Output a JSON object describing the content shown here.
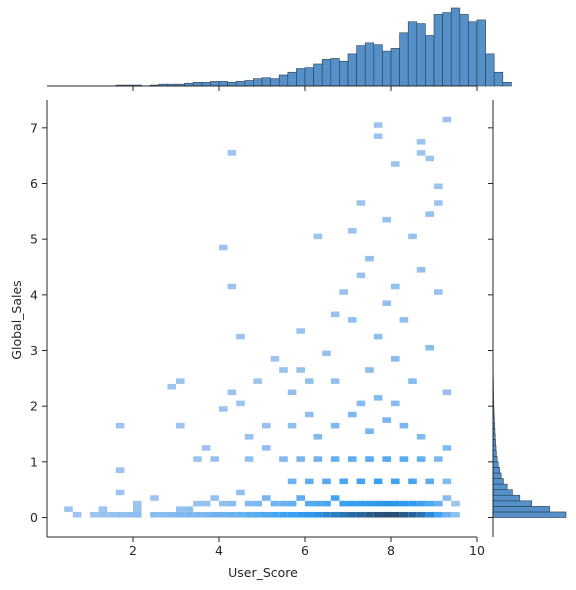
{
  "chart_data": {
    "type": "jointplot-histogram",
    "xlabel": "User_Score",
    "ylabel": "Global_Sales",
    "xlim": [
      0,
      10
    ],
    "ylim": [
      -0.35,
      7.5
    ],
    "xticks": [
      2,
      4,
      6,
      8,
      10
    ],
    "yticks": [
      0,
      1,
      2,
      3,
      4,
      5,
      6,
      7
    ],
    "colors": {
      "hist": "#4c8bc5",
      "hist_edge": "#2c3e50",
      "heat_light": "#a8c8ee",
      "heat_mid": "#2b9af0",
      "heat_dark": "#274d73"
    },
    "marginal_x": {
      "bin_start": 1.6,
      "bin_width": 0.2,
      "counts": [
        1,
        1,
        1,
        0,
        1,
        2,
        2,
        2,
        3,
        4,
        4,
        5,
        5,
        4,
        5,
        6,
        8,
        9,
        8,
        12,
        15,
        19,
        20,
        24,
        29,
        30,
        27,
        35,
        44,
        47,
        45,
        38,
        41,
        58,
        70,
        68,
        55,
        78,
        80,
        85,
        78,
        70,
        72,
        35,
        15,
        4
      ]
    },
    "marginal_y": {
      "bin_start": 0,
      "bin_width": 0.1,
      "counts": [
        980,
        760,
        520,
        360,
        260,
        190,
        140,
        110,
        90,
        70,
        55,
        45,
        40,
        35,
        30,
        26,
        22,
        18,
        15,
        12,
        10,
        8,
        7,
        6,
        5,
        4,
        3,
        3,
        2,
        2,
        1,
        1
      ]
    },
    "heatmap": {
      "x_bin_width": 0.2,
      "y_bin_width": 0.1,
      "cells": [
        [
          0.4,
          0.1,
          1
        ],
        [
          0.6,
          0.0,
          1
        ],
        [
          1.0,
          0.0,
          1
        ],
        [
          1.2,
          0.1,
          1
        ],
        [
          1.2,
          0.0,
          2
        ],
        [
          1.4,
          0.0,
          2
        ],
        [
          1.6,
          0.0,
          3
        ],
        [
          1.8,
          0.0,
          4
        ],
        [
          2.0,
          0.0,
          5
        ],
        [
          2.0,
          0.1,
          2
        ],
        [
          1.6,
          1.6,
          1
        ],
        [
          1.6,
          0.8,
          1
        ],
        [
          1.6,
          0.4,
          1
        ],
        [
          2.0,
          0.2,
          1
        ],
        [
          2.4,
          0.0,
          6
        ],
        [
          2.4,
          0.3,
          1
        ],
        [
          2.6,
          0.0,
          6
        ],
        [
          2.8,
          0.0,
          8
        ],
        [
          3.0,
          0.0,
          9
        ],
        [
          3.0,
          0.1,
          3
        ],
        [
          3.2,
          0.0,
          10
        ],
        [
          3.2,
          0.1,
          4
        ],
        [
          3.4,
          0.0,
          10
        ],
        [
          3.4,
          0.2,
          2
        ],
        [
          3.6,
          0.0,
          12
        ],
        [
          3.6,
          0.2,
          3
        ],
        [
          3.8,
          0.0,
          14
        ],
        [
          3.8,
          0.3,
          3
        ],
        [
          4.0,
          0.0,
          16
        ],
        [
          4.0,
          0.2,
          4
        ],
        [
          4.2,
          0.0,
          18
        ],
        [
          4.2,
          0.2,
          5
        ],
        [
          4.4,
          0.0,
          20
        ],
        [
          4.4,
          0.4,
          4
        ],
        [
          4.6,
          0.0,
          24
        ],
        [
          4.6,
          0.2,
          8
        ],
        [
          4.8,
          0.0,
          28
        ],
        [
          4.8,
          0.2,
          10
        ],
        [
          5.0,
          0.0,
          34
        ],
        [
          5.0,
          0.3,
          12
        ],
        [
          5.2,
          0.0,
          38
        ],
        [
          5.2,
          0.2,
          14
        ],
        [
          5.4,
          0.0,
          44
        ],
        [
          5.4,
          0.2,
          18
        ],
        [
          5.6,
          0.0,
          48
        ],
        [
          5.6,
          0.2,
          20
        ],
        [
          5.8,
          0.0,
          52
        ],
        [
          5.8,
          0.3,
          24
        ],
        [
          6.0,
          0.0,
          60
        ],
        [
          6.0,
          0.2,
          28
        ],
        [
          6.2,
          0.0,
          66
        ],
        [
          6.2,
          0.2,
          32
        ],
        [
          6.4,
          0.0,
          76
        ],
        [
          6.4,
          0.2,
          36
        ],
        [
          6.6,
          0.0,
          82
        ],
        [
          6.6,
          0.3,
          38
        ],
        [
          6.8,
          0.0,
          90
        ],
        [
          6.8,
          0.2,
          44
        ],
        [
          7.0,
          0.0,
          100
        ],
        [
          7.0,
          0.2,
          48
        ],
        [
          7.2,
          0.0,
          108
        ],
        [
          7.2,
          0.2,
          52
        ],
        [
          7.4,
          0.0,
          120
        ],
        [
          7.4,
          0.2,
          56
        ],
        [
          7.6,
          0.0,
          128
        ],
        [
          7.6,
          0.2,
          60
        ],
        [
          7.8,
          0.0,
          134
        ],
        [
          7.8,
          0.2,
          62
        ],
        [
          8.0,
          0.0,
          130
        ],
        [
          8.0,
          0.2,
          60
        ],
        [
          8.2,
          0.0,
          122
        ],
        [
          8.2,
          0.2,
          56
        ],
        [
          8.4,
          0.0,
          110
        ],
        [
          8.4,
          0.2,
          52
        ],
        [
          8.6,
          0.0,
          96
        ],
        [
          8.6,
          0.2,
          44
        ],
        [
          8.8,
          0.0,
          70
        ],
        [
          8.8,
          0.2,
          32
        ],
        [
          9.0,
          0.0,
          40
        ],
        [
          9.0,
          0.2,
          18
        ],
        [
          9.2,
          0.0,
          16
        ],
        [
          9.2,
          0.3,
          6
        ],
        [
          9.4,
          0.0,
          4
        ],
        [
          9.4,
          0.2,
          1
        ],
        [
          2.8,
          2.3,
          1
        ],
        [
          3.0,
          2.4,
          1
        ],
        [
          3.0,
          1.6,
          1
        ],
        [
          3.4,
          1.0,
          1
        ],
        [
          3.6,
          1.2,
          1
        ],
        [
          3.8,
          1.0,
          2
        ],
        [
          4.0,
          1.9,
          1
        ],
        [
          4.2,
          2.2,
          1
        ],
        [
          4.2,
          4.1,
          1
        ],
        [
          4.2,
          6.5,
          1
        ],
        [
          4.0,
          4.8,
          1
        ],
        [
          4.4,
          2.0,
          1
        ],
        [
          4.4,
          3.2,
          1
        ],
        [
          4.6,
          1.0,
          3
        ],
        [
          4.6,
          1.4,
          2
        ],
        [
          4.8,
          2.4,
          1
        ],
        [
          5.0,
          1.6,
          2
        ],
        [
          5.0,
          1.2,
          3
        ],
        [
          5.2,
          2.8,
          1
        ],
        [
          5.4,
          2.6,
          2
        ],
        [
          5.6,
          2.2,
          3
        ],
        [
          5.6,
          1.6,
          4
        ],
        [
          5.8,
          2.6,
          2
        ],
        [
          5.8,
          3.3,
          1
        ],
        [
          6.0,
          2.4,
          3
        ],
        [
          6.0,
          1.8,
          4
        ],
        [
          6.2,
          5.0,
          1
        ],
        [
          6.4,
          2.9,
          2
        ],
        [
          6.6,
          2.4,
          3
        ],
        [
          6.6,
          3.6,
          2
        ],
        [
          6.8,
          4.0,
          2
        ],
        [
          7.0,
          5.1,
          1
        ],
        [
          7.0,
          3.5,
          3
        ],
        [
          7.2,
          4.3,
          2
        ],
        [
          7.2,
          5.6,
          1
        ],
        [
          7.4,
          2.6,
          5
        ],
        [
          7.4,
          4.6,
          3
        ],
        [
          7.6,
          3.2,
          4
        ],
        [
          7.6,
          7.0,
          1
        ],
        [
          7.6,
          6.8,
          1
        ],
        [
          7.8,
          3.8,
          3
        ],
        [
          7.8,
          5.3,
          2
        ],
        [
          8.0,
          2.8,
          6
        ],
        [
          8.0,
          4.1,
          3
        ],
        [
          8.0,
          6.3,
          1
        ],
        [
          8.2,
          3.5,
          4
        ],
        [
          8.4,
          5.0,
          2
        ],
        [
          8.4,
          2.4,
          7
        ],
        [
          8.6,
          6.7,
          1
        ],
        [
          8.6,
          4.4,
          3
        ],
        [
          8.8,
          5.4,
          2
        ],
        [
          8.8,
          3.0,
          5
        ],
        [
          9.0,
          5.6,
          1
        ],
        [
          9.0,
          4.0,
          2
        ],
        [
          9.2,
          7.1,
          1
        ],
        [
          9.2,
          2.2,
          3
        ],
        [
          9.2,
          1.2,
          8
        ],
        [
          8.6,
          6.5,
          1
        ],
        [
          8.8,
          6.4,
          1
        ],
        [
          9.0,
          5.9,
          1
        ],
        [
          5.4,
          1.0,
          8
        ],
        [
          5.8,
          1.0,
          12
        ],
        [
          6.2,
          1.0,
          16
        ],
        [
          6.6,
          1.0,
          20
        ],
        [
          7.0,
          1.0,
          24
        ],
        [
          7.4,
          1.0,
          26
        ],
        [
          7.8,
          1.0,
          28
        ],
        [
          8.2,
          1.0,
          26
        ],
        [
          8.6,
          1.0,
          20
        ],
        [
          9.0,
          1.0,
          10
        ],
        [
          5.6,
          0.6,
          16
        ],
        [
          6.0,
          0.6,
          22
        ],
        [
          6.4,
          0.6,
          28
        ],
        [
          6.8,
          0.6,
          34
        ],
        [
          7.2,
          0.6,
          40
        ],
        [
          7.6,
          0.6,
          44
        ],
        [
          8.0,
          0.6,
          42
        ],
        [
          8.4,
          0.6,
          36
        ],
        [
          8.8,
          0.6,
          24
        ],
        [
          9.2,
          0.6,
          8
        ],
        [
          6.2,
          1.4,
          8
        ],
        [
          6.6,
          1.6,
          9
        ],
        [
          7.0,
          1.8,
          10
        ],
        [
          7.4,
          1.5,
          12
        ],
        [
          7.8,
          1.7,
          12
        ],
        [
          8.2,
          1.6,
          10
        ],
        [
          8.6,
          1.4,
          8
        ],
        [
          7.2,
          2.0,
          6
        ],
        [
          7.6,
          2.1,
          7
        ],
        [
          8.0,
          2.0,
          6
        ]
      ]
    }
  }
}
